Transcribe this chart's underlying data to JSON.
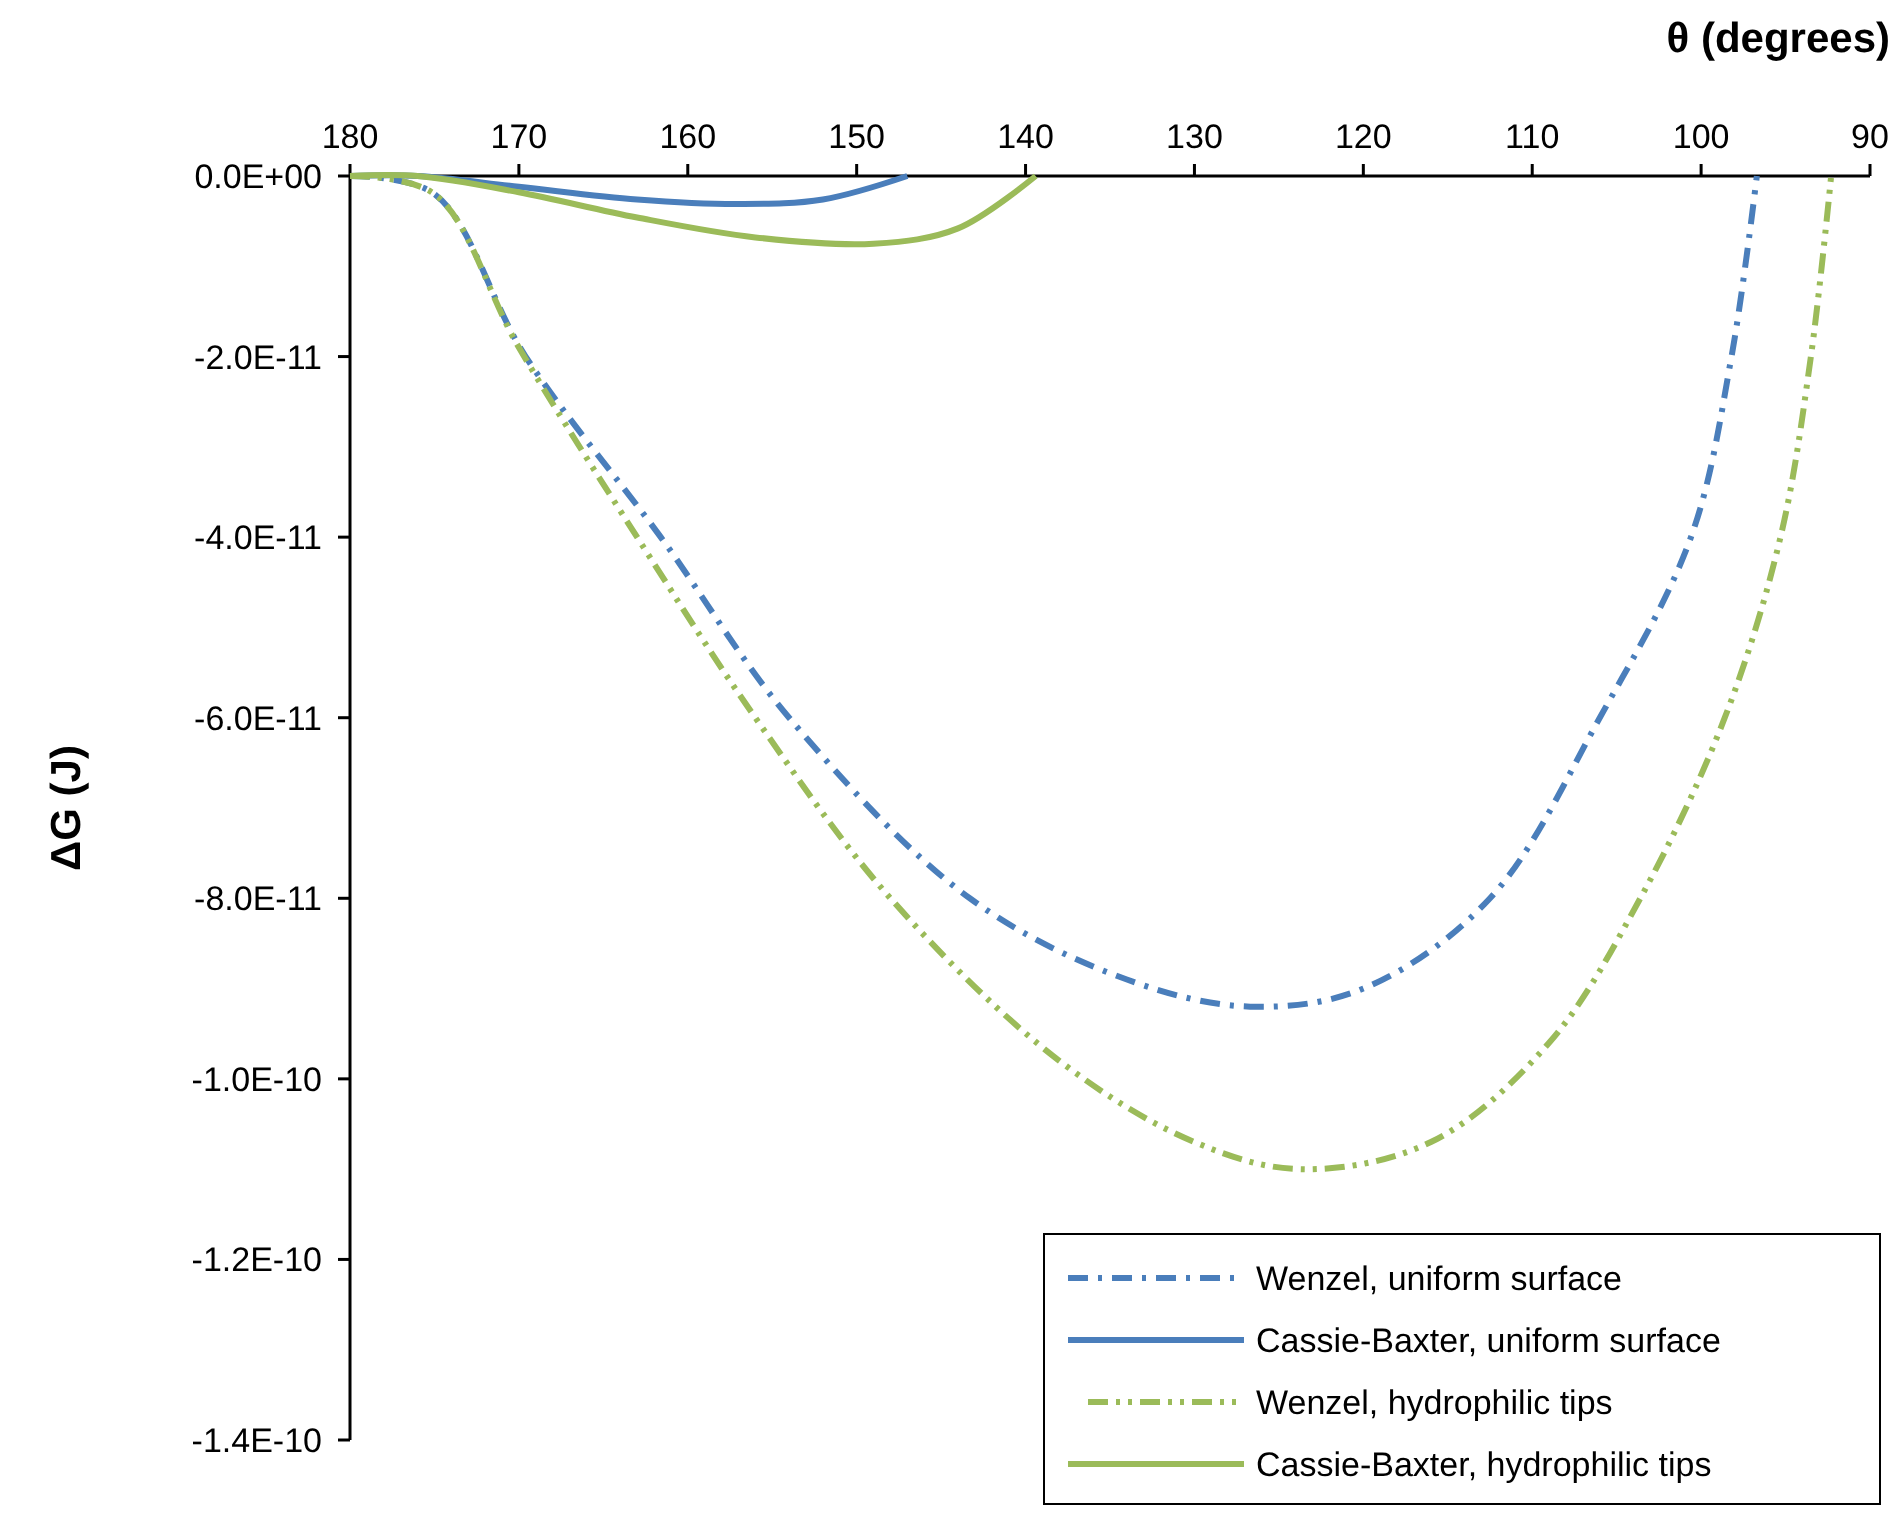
{
  "chart_data": {
    "type": "line",
    "xlabel": "θ (degrees)",
    "ylabel": "ΔG (J)",
    "xlim": [
      180,
      90
    ],
    "xticks": [
      180,
      170,
      160,
      150,
      140,
      130,
      120,
      110,
      100,
      90
    ],
    "ylim": [
      -1.4e-10,
      0
    ],
    "yticks": [
      {
        "value": 0,
        "label": "0.0E+00"
      },
      {
        "value": -2e-11,
        "label": "-2.0E-11"
      },
      {
        "value": -4e-11,
        "label": "-4.0E-11"
      },
      {
        "value": -6e-11,
        "label": "-6.0E-11"
      },
      {
        "value": -8e-11,
        "label": "-8.0E-11"
      },
      {
        "value": -1e-10,
        "label": "-1.0E-10"
      },
      {
        "value": -1.2e-10,
        "label": "-1.2E-10"
      },
      {
        "value": -1.4e-10,
        "label": "-1.4E-10"
      }
    ],
    "grid": false,
    "legend": "bottom right",
    "marker": "none",
    "series": [
      {
        "name": "Wenzel, uniform surface",
        "color": "#4a7ebb",
        "line_style": "dashed",
        "x": [
          180,
          175,
          169.6,
          161.6,
          154,
          143.3,
          134,
          126.7,
          120,
          112.5,
          106,
          100.6,
          98.2,
          96.7
        ],
        "values": [
          0,
          -2e-12,
          -2e-11,
          -4e-11,
          -6e-11,
          -8e-11,
          -8.9e-11,
          -9.2e-11,
          -9e-11,
          -8e-11,
          -6e-11,
          -4e-11,
          -2e-11,
          0
        ]
      },
      {
        "name": "Cassie-Baxter, uniform surface",
        "color": "#4a7ebb",
        "line_style": "solid",
        "x": [
          180,
          176,
          170,
          163,
          157,
          152,
          147
        ],
        "values": [
          0,
          0,
          -1.2e-12,
          -2.6e-12,
          -3.1e-12,
          -2.6e-12,
          0
        ]
      },
      {
        "name": "Wenzel, hydrophilic tips",
        "color": "#9bbb59",
        "line_style": "dotted",
        "x": [
          180,
          175,
          170,
          163,
          156,
          148,
          138,
          130,
          123.7,
          116,
          109,
          103.6,
          98.6,
          95.3,
          93.5,
          92.3
        ],
        "values": [
          0,
          -2e-12,
          -1.9e-11,
          -4e-11,
          -6e-11,
          -8e-11,
          -9.8e-11,
          -1.07e-10,
          -1.1e-10,
          -1.07e-10,
          -9.6e-11,
          -8e-11,
          -6e-11,
          -4e-11,
          -2e-11,
          0
        ]
      },
      {
        "name": "Cassie-Baxter, hydrophilic tips",
        "color": "#9bbb59",
        "line_style": "solid",
        "x": [
          180,
          176,
          170,
          163,
          156,
          149,
          144,
          139.4
        ],
        "values": [
          0,
          0,
          -1.8e-12,
          -4.6e-12,
          -6.8e-12,
          -7.5e-12,
          -5.8e-12,
          0
        ]
      }
    ]
  }
}
